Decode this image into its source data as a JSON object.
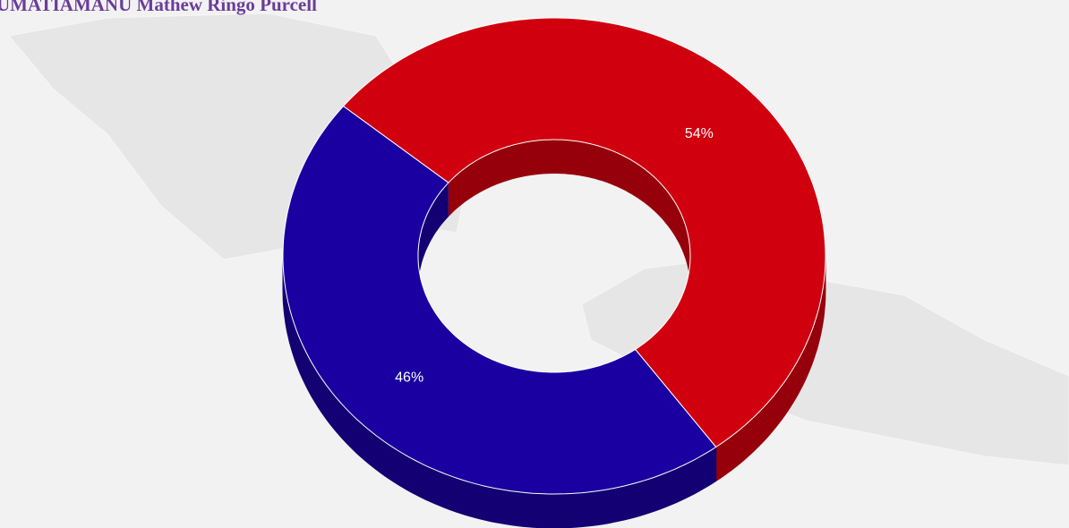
{
  "chart_data": {
    "type": "pie",
    "title": "UMATIAMANU Mathew Ringo Purcell",
    "values": [
      54,
      46
    ],
    "value_labels": [
      "54%",
      "46%"
    ],
    "colors": [
      "#d0000f",
      "#1a00a0"
    ],
    "donut": true,
    "three_d": true
  }
}
